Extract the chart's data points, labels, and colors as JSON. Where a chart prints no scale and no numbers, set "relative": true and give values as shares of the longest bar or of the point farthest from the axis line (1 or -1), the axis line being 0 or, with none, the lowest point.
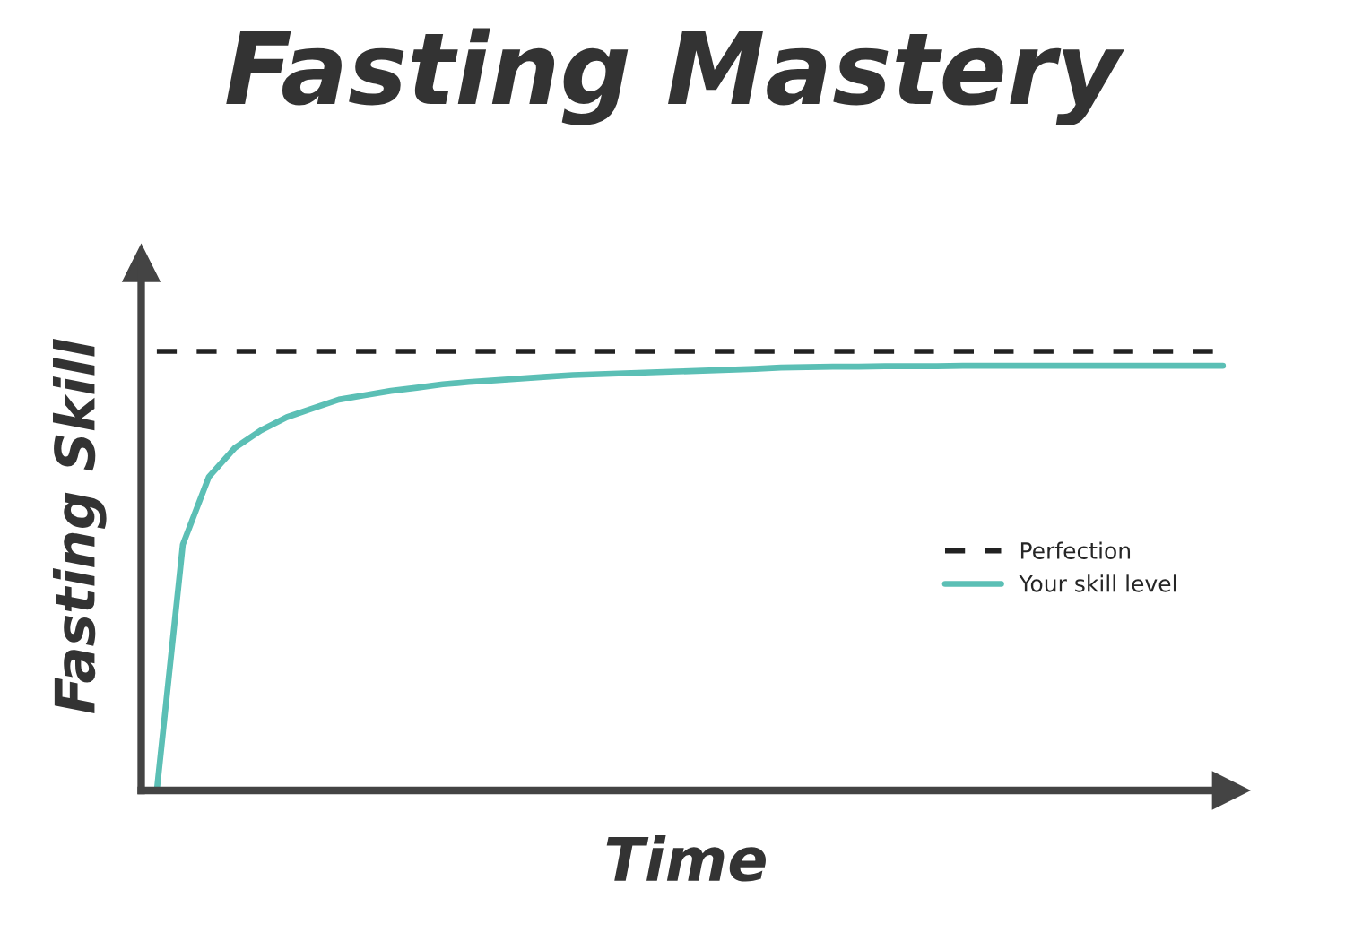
{
  "chart_data": {
    "type": "line",
    "title": "Fasting Mastery",
    "xlabel": "Time",
    "ylabel": "Fasting Skill",
    "relative": true,
    "legend": "right",
    "categories": [
      null,
      null,
      null,
      null,
      null,
      null,
      null,
      null,
      null,
      null,
      null,
      null,
      null,
      null,
      null,
      null,
      null,
      null,
      null,
      null,
      null,
      null,
      null,
      null,
      null,
      null,
      null,
      null,
      null,
      null,
      null,
      null,
      null,
      null,
      null,
      null,
      null,
      null,
      null,
      null,
      null,
      null
    ],
    "series": [
      {
        "name": "Perfection",
        "color": "#222222",
        "line_style": "dashed",
        "values": [
          1,
          1,
          1,
          1,
          1,
          1,
          1,
          1,
          1,
          1,
          1,
          1,
          1,
          1,
          1,
          1,
          1,
          1,
          1,
          1,
          1,
          1,
          1,
          1,
          1,
          1,
          1,
          1,
          1,
          1,
          1,
          1,
          1,
          1,
          1,
          1,
          1,
          1,
          1,
          1,
          1,
          1
        ]
      },
      {
        "name": "Your skill level",
        "color": "#5bbfb5",
        "line_style": "solid",
        "values": [
          0,
          0.56,
          0.714,
          0.78,
          0.82,
          0.85,
          0.87,
          0.89,
          0.9,
          0.91,
          0.917,
          0.925,
          0.93,
          0.934,
          0.938,
          0.942,
          0.946,
          0.948,
          0.95,
          0.952,
          0.954,
          0.956,
          0.958,
          0.96,
          0.963,
          0.964,
          0.965,
          0.965,
          0.966,
          0.966,
          0.966,
          0.967,
          0.967,
          0.967,
          0.967,
          0.967,
          0.967,
          0.967,
          0.967,
          0.967,
          0.967,
          0.967
        ]
      }
    ]
  }
}
